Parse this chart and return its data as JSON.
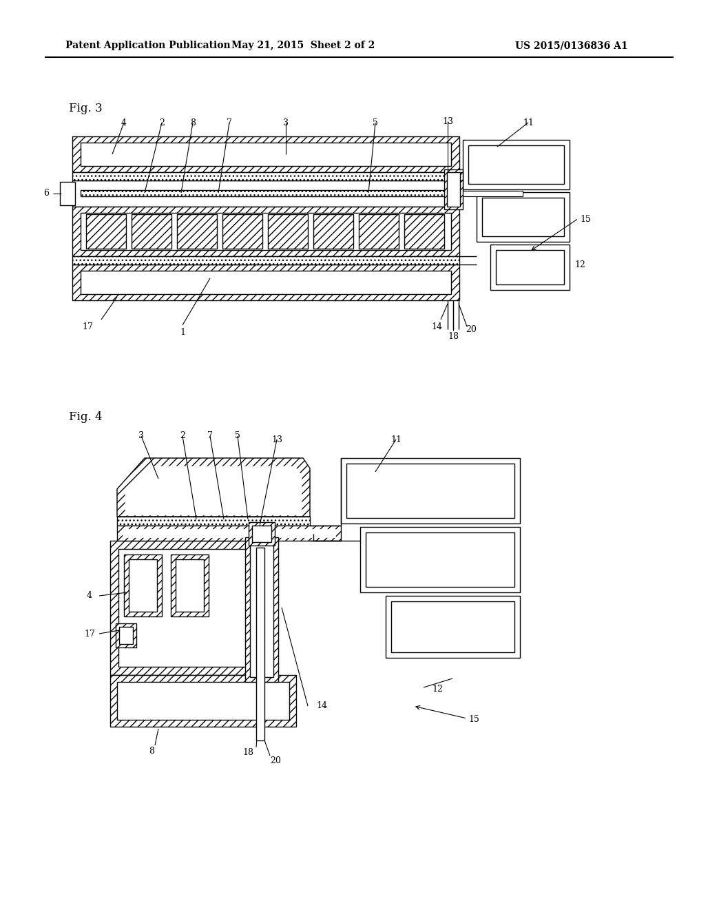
{
  "bg_color": "#ffffff",
  "line_color": "#000000",
  "header_left": "Patent Application Publication",
  "header_center": "May 21, 2015  Sheet 2 of 2",
  "header_right": "US 2015/0136836 A1",
  "fig3_label": "Fig. 3",
  "fig4_label": "Fig. 4"
}
